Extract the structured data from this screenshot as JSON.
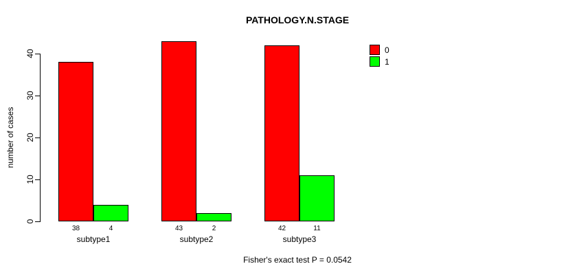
{
  "chart_data": {
    "type": "bar",
    "title": "PATHOLOGY.N.STAGE",
    "ylabel": "number of cases",
    "xlabel": "",
    "categories": [
      "subtype1",
      "subtype2",
      "subtype3"
    ],
    "series": [
      {
        "name": "0",
        "color": "#FF0000",
        "values": [
          38,
          43,
          42
        ]
      },
      {
        "name": "1",
        "color": "#00FF00",
        "values": [
          4,
          2,
          11
        ]
      }
    ],
    "bar_count_labels": [
      [
        "38",
        "4"
      ],
      [
        "43",
        "2"
      ],
      [
        "42",
        "11"
      ]
    ],
    "ylim": [
      0,
      40
    ],
    "yticks": [
      0,
      10,
      20,
      30,
      40
    ],
    "grid": false,
    "legend_position": "top-right",
    "caption": "Fisher's exact test P = 0.0542"
  }
}
